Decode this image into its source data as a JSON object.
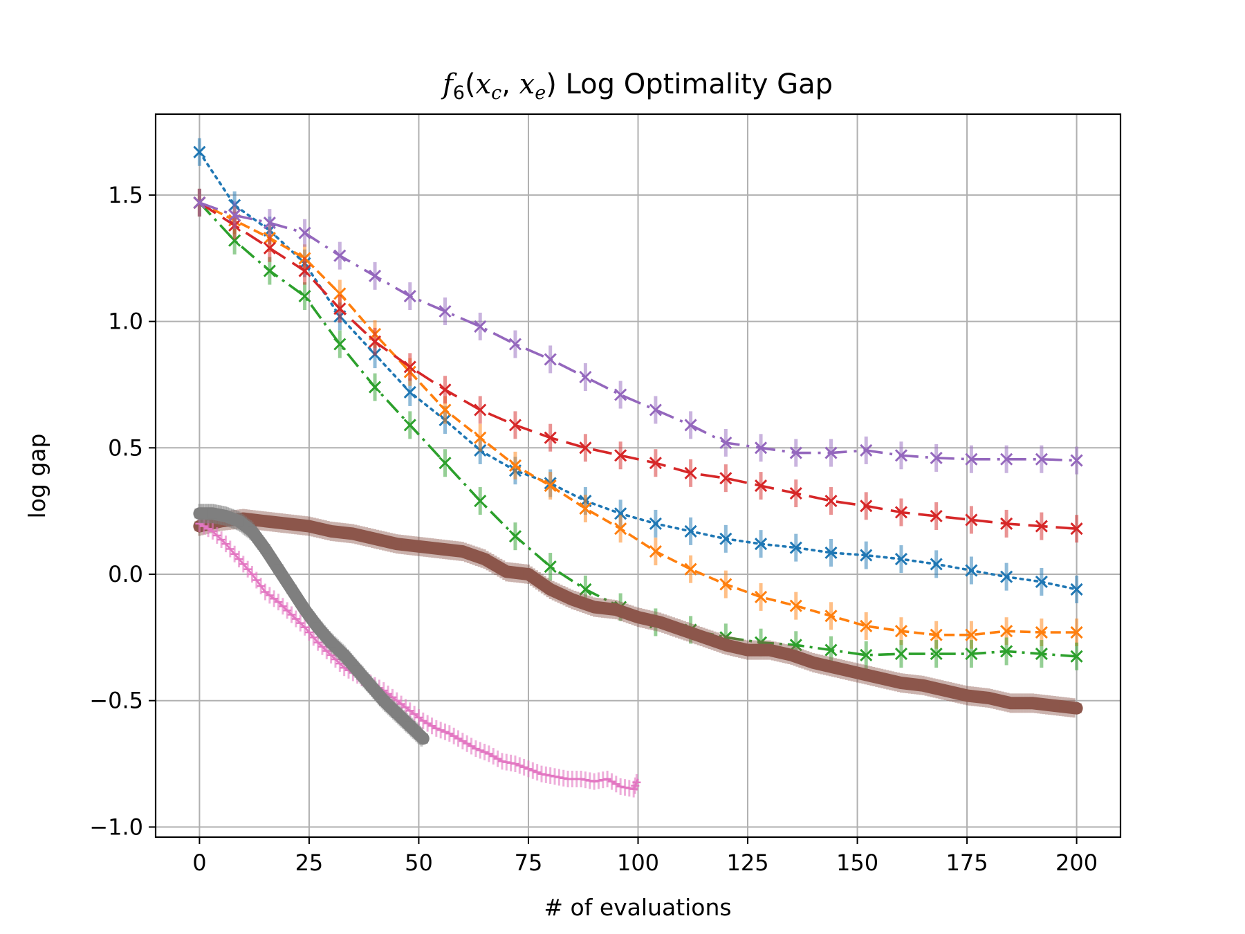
{
  "chart_data": {
    "type": "line",
    "title_parts": {
      "f": "f",
      "sub6": "6",
      "open": "(",
      "x1": "x",
      "sub_c": "c",
      "comma": ", ",
      "x2": "x",
      "sub_e": "e",
      "close": ")",
      "rest": " Log Optimality Gap"
    },
    "xlabel": "# of evaluations",
    "ylabel": "log gap",
    "xlim": [
      -10,
      210
    ],
    "ylim": [
      -1.04,
      1.82
    ],
    "xticks": [
      {
        "value": 0,
        "label": "0"
      },
      {
        "value": 25,
        "label": "25"
      },
      {
        "value": 50,
        "label": "50"
      },
      {
        "value": 75,
        "label": "75"
      },
      {
        "value": 100,
        "label": "100"
      },
      {
        "value": 125,
        "label": "125"
      },
      {
        "value": 150,
        "label": "150"
      },
      {
        "value": 175,
        "label": "175"
      },
      {
        "value": 200,
        "label": "200"
      }
    ],
    "yticks": [
      {
        "value": -1.0,
        "label": "−1.0"
      },
      {
        "value": -0.5,
        "label": "−0.5"
      },
      {
        "value": 0.0,
        "label": "0.0"
      },
      {
        "value": 0.5,
        "label": "0.5"
      },
      {
        "value": 1.0,
        "label": "1.0"
      },
      {
        "value": 1.5,
        "label": "1.5"
      }
    ],
    "grid": true,
    "legend": "none",
    "series": [
      {
        "color": "#1f77b4",
        "linestyle": "dotted",
        "marker": "x",
        "x": [
          0,
          8,
          16,
          24,
          32,
          40,
          48,
          56,
          64,
          72,
          80,
          88,
          96,
          104,
          112,
          120,
          128,
          136,
          144,
          152,
          160,
          168,
          176,
          184,
          192,
          200
        ],
        "y": [
          1.67,
          1.46,
          1.36,
          1.23,
          1.02,
          0.87,
          0.72,
          0.61,
          0.49,
          0.41,
          0.36,
          0.29,
          0.24,
          0.2,
          0.17,
          0.14,
          0.12,
          0.105,
          0.085,
          0.075,
          0.06,
          0.04,
          0.015,
          -0.01,
          -0.03,
          -0.06
        ]
      },
      {
        "color": "#ff7f0e",
        "linestyle": "dashed",
        "marker": "x",
        "x": [
          0,
          8,
          16,
          24,
          32,
          40,
          48,
          56,
          64,
          72,
          80,
          88,
          96,
          104,
          112,
          120,
          128,
          136,
          144,
          152,
          160,
          168,
          176,
          184,
          192,
          200
        ],
        "y": [
          1.47,
          1.4,
          1.33,
          1.25,
          1.11,
          0.95,
          0.8,
          0.65,
          0.54,
          0.43,
          0.35,
          0.26,
          0.18,
          0.09,
          0.02,
          -0.04,
          -0.09,
          -0.125,
          -0.165,
          -0.205,
          -0.225,
          -0.24,
          -0.24,
          -0.225,
          -0.23,
          -0.23
        ]
      },
      {
        "color": "#2ca02c",
        "linestyle": "dashdot",
        "marker": "x",
        "x": [
          0,
          8,
          16,
          24,
          32,
          40,
          48,
          56,
          64,
          72,
          80,
          88,
          96,
          104,
          112,
          120,
          128,
          136,
          144,
          152,
          160,
          168,
          176,
          184,
          192,
          200
        ],
        "y": [
          1.47,
          1.32,
          1.2,
          1.1,
          0.91,
          0.74,
          0.59,
          0.44,
          0.29,
          0.15,
          0.03,
          -0.06,
          -0.13,
          -0.19,
          -0.22,
          -0.25,
          -0.27,
          -0.28,
          -0.3,
          -0.32,
          -0.315,
          -0.315,
          -0.315,
          -0.305,
          -0.315,
          -0.325
        ]
      },
      {
        "color": "#d62728",
        "linestyle": "longdash",
        "marker": "x",
        "x": [
          0,
          8,
          16,
          24,
          32,
          40,
          48,
          56,
          64,
          72,
          80,
          88,
          96,
          104,
          112,
          120,
          128,
          136,
          144,
          152,
          160,
          168,
          176,
          184,
          192,
          200
        ],
        "y": [
          1.47,
          1.38,
          1.29,
          1.2,
          1.05,
          0.92,
          0.82,
          0.73,
          0.65,
          0.59,
          0.54,
          0.5,
          0.47,
          0.44,
          0.4,
          0.38,
          0.35,
          0.32,
          0.29,
          0.27,
          0.245,
          0.23,
          0.215,
          0.2,
          0.19,
          0.18
        ]
      },
      {
        "color": "#9467bd",
        "linestyle": "dashdotlong",
        "marker": "x",
        "x": [
          0,
          8,
          16,
          24,
          32,
          40,
          48,
          56,
          64,
          72,
          80,
          88,
          96,
          104,
          112,
          120,
          128,
          136,
          144,
          152,
          160,
          168,
          176,
          184,
          192,
          200
        ],
        "y": [
          1.47,
          1.42,
          1.39,
          1.35,
          1.26,
          1.18,
          1.1,
          1.04,
          0.98,
          0.91,
          0.85,
          0.78,
          0.71,
          0.65,
          0.59,
          0.52,
          0.5,
          0.48,
          0.48,
          0.49,
          0.47,
          0.46,
          0.455,
          0.455,
          0.455,
          0.45
        ]
      },
      {
        "color": "#8c564b",
        "linestyle": "solid",
        "marker": "thick",
        "x": [
          0,
          5,
          10,
          15,
          20,
          25,
          30,
          35,
          40,
          45,
          50,
          55,
          60,
          65,
          70,
          75,
          80,
          85,
          90,
          95,
          100,
          105,
          110,
          115,
          120,
          125,
          130,
          135,
          140,
          145,
          150,
          155,
          160,
          165,
          170,
          175,
          180,
          185,
          190,
          195,
          200
        ],
        "y": [
          0.19,
          0.21,
          0.22,
          0.21,
          0.2,
          0.19,
          0.17,
          0.16,
          0.14,
          0.12,
          0.11,
          0.1,
          0.09,
          0.06,
          0.01,
          0.0,
          -0.06,
          -0.1,
          -0.13,
          -0.14,
          -0.17,
          -0.19,
          -0.22,
          -0.25,
          -0.28,
          -0.3,
          -0.3,
          -0.32,
          -0.35,
          -0.37,
          -0.39,
          -0.41,
          -0.43,
          -0.44,
          -0.46,
          -0.48,
          -0.49,
          -0.51,
          -0.51,
          -0.52,
          -0.53
        ]
      },
      {
        "color": "#e377c2",
        "linestyle": "solid",
        "marker": "plus",
        "x": [
          0,
          3,
          6,
          9,
          12,
          15,
          18,
          21,
          24,
          27,
          30,
          33,
          36,
          39,
          42,
          45,
          48,
          51,
          54,
          57,
          60,
          63,
          66,
          69,
          72,
          75,
          78,
          81,
          84,
          87,
          90,
          93,
          96,
          99,
          100
        ],
        "y": [
          0.2,
          0.17,
          0.12,
          0.06,
          0.0,
          -0.07,
          -0.11,
          -0.16,
          -0.21,
          -0.27,
          -0.32,
          -0.37,
          -0.4,
          -0.43,
          -0.46,
          -0.5,
          -0.54,
          -0.58,
          -0.61,
          -0.63,
          -0.66,
          -0.69,
          -0.71,
          -0.74,
          -0.75,
          -0.77,
          -0.79,
          -0.8,
          -0.81,
          -0.81,
          -0.82,
          -0.81,
          -0.84,
          -0.85,
          -0.81
        ]
      },
      {
        "color": "#7f7f7f",
        "linestyle": "solid",
        "marker": "thick",
        "x": [
          0,
          3,
          6,
          9,
          12,
          15,
          18,
          21,
          24,
          27,
          30,
          33,
          36,
          39,
          42,
          45,
          48,
          51
        ],
        "y": [
          0.24,
          0.24,
          0.23,
          0.21,
          0.17,
          0.1,
          0.02,
          -0.06,
          -0.14,
          -0.21,
          -0.27,
          -0.32,
          -0.38,
          -0.44,
          -0.5,
          -0.55,
          -0.6,
          -0.65
        ]
      }
    ]
  }
}
